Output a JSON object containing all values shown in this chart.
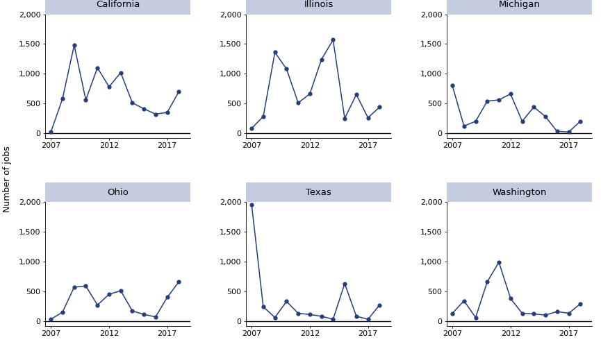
{
  "states": [
    "California",
    "Illinois",
    "Michigan",
    "Ohio",
    "Texas",
    "Washington"
  ],
  "years": [
    2007,
    2008,
    2009,
    2010,
    2011,
    2012,
    2013,
    2014,
    2015,
    2016,
    2017,
    2018
  ],
  "data": {
    "California": [
      20,
      580,
      1480,
      560,
      1100,
      780,
      1020,
      510,
      410,
      320,
      350,
      700
    ],
    "Illinois": [
      80,
      280,
      1360,
      1080,
      510,
      660,
      1240,
      1570,
      250,
      650,
      260,
      440
    ],
    "Michigan": [
      800,
      120,
      200,
      540,
      560,
      660,
      200,
      440,
      280,
      30,
      20,
      200
    ],
    "Ohio": [
      30,
      150,
      570,
      590,
      270,
      450,
      510,
      170,
      110,
      70,
      400,
      660
    ],
    "Texas": [
      1960,
      240,
      60,
      330,
      130,
      110,
      80,
      30,
      630,
      80,
      30,
      270
    ],
    "Washington": [
      130,
      340,
      60,
      660,
      990,
      380,
      130,
      120,
      100,
      160,
      130,
      290
    ]
  },
  "line_color": "#253d7f",
  "marker_color": "#253d7f",
  "title_bg_color": "#c5cce0",
  "ylim_min": -80,
  "ylim_max": 2000,
  "yticks": [
    0,
    500,
    1000,
    1500,
    2000
  ],
  "xticks": [
    2007,
    2012,
    2017
  ],
  "ylabel": "Number of jobs",
  "fig_bg_color": "#ffffff",
  "axes_bg_color": "#ffffff",
  "xlim_min": 2006.5,
  "xlim_max": 2019.0
}
